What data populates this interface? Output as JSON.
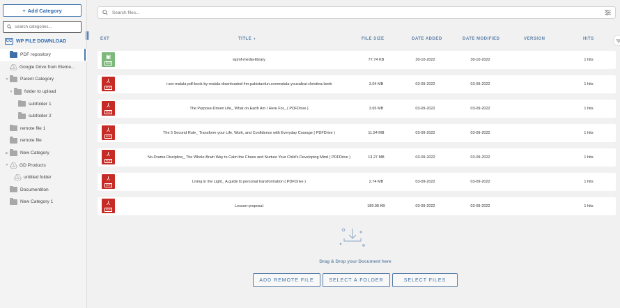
{
  "sidebar": {
    "add_category": "Add Category",
    "search_placeholder": "Search categories...",
    "brand": "WP FILE DOWNLOAD",
    "brand_logo": "CC",
    "items": [
      {
        "label": "PDF repository",
        "level": 0,
        "icon": "folder",
        "active": true,
        "arrow": ""
      },
      {
        "label": "Google Drive from Eleme...",
        "level": 0,
        "icon": "google-drive",
        "arrow": ""
      },
      {
        "label": "Parent Category",
        "level": 0,
        "icon": "folder",
        "arrow": "▼"
      },
      {
        "label": "folder to upload",
        "level": 1,
        "icon": "folder",
        "arrow": "▼"
      },
      {
        "label": "subfolder 1",
        "level": 2,
        "icon": "folder",
        "arrow": ""
      },
      {
        "label": "subfolder 2",
        "level": 2,
        "icon": "folder",
        "arrow": ""
      },
      {
        "label": "remote file 1",
        "level": 0,
        "icon": "folder",
        "arrow": ""
      },
      {
        "label": "remote file",
        "level": 0,
        "icon": "folder",
        "arrow": ""
      },
      {
        "label": "New Category",
        "level": 0,
        "icon": "folder",
        "arrow": "▶"
      },
      {
        "label": "GD Products",
        "level": 0,
        "icon": "google-drive",
        "arrow": "▼"
      },
      {
        "label": "untitled folder",
        "level": 1,
        "icon": "google-drive",
        "arrow": ""
      },
      {
        "label": "Documentiton",
        "level": 0,
        "icon": "folder",
        "arrow": ""
      },
      {
        "label": "New Category 1",
        "level": 0,
        "icon": "folder",
        "arrow": ""
      }
    ]
  },
  "search": {
    "placeholder": "Search files..."
  },
  "table": {
    "headers": {
      "ext": "EXT",
      "title": "TITLE",
      "sort_icon": "▼",
      "size": "FILE SIZE",
      "added": "DATE ADDED",
      "modified": "DATE MODIFIED",
      "version": "VERSION",
      "hits": "HITS"
    },
    "rows": [
      {
        "ext": "PNG",
        "ext_color": "#7cb87a",
        "title": "wpmf-media-library",
        "size": "77.74 KB",
        "added": "30-10-2022",
        "modified": "30-10-2022",
        "version": "",
        "hits": "1 hits"
      },
      {
        "ext": "PDF",
        "ext_color": "#c62b25",
        "title": "i-am-malala-pdf-book-by-malala-downloaded-4m-pakistanfun.commalala-yousafzai-christina-lamb",
        "size": "3.04 MB",
        "added": "03-09-2022",
        "modified": "03-09-2022",
        "version": "",
        "hits": "1 hits"
      },
      {
        "ext": "PDF",
        "ext_color": "#c62b25",
        "title": "The Purpose-Driven Life_ What on Earth Am I Here For_ ( PDFDrive )",
        "size": "3.65 MB",
        "added": "03-09-2022",
        "modified": "03-09-2022",
        "version": "",
        "hits": "1 hits"
      },
      {
        "ext": "PDF",
        "ext_color": "#c62b25",
        "title": "The 5 Second Rule_ Transform your Life, Work, and Confidence with Everyday Courage ( PDFDrive )",
        "size": "11.94 MB",
        "added": "03-09-2022",
        "modified": "03-09-2022",
        "version": "",
        "hits": "1 hits"
      },
      {
        "ext": "PDF",
        "ext_color": "#c62b25",
        "title": "No-Drama Discipline_ The Whole-Brain Way to Calm the Chaos and Nurture Your Child's Developing Mind ( PDFDrive )",
        "size": "13.27 MB",
        "added": "03-09-2022",
        "modified": "03-09-2022",
        "version": "",
        "hits": "1 hits"
      },
      {
        "ext": "PDF",
        "ext_color": "#c62b25",
        "title": "Living in the Light_ A guide to personal transformation ( PDFDrive )",
        "size": "2.74 MB",
        "added": "03-09-2022",
        "modified": "03-09-2022",
        "version": "",
        "hits": "1 hits"
      },
      {
        "ext": "PDF",
        "ext_color": "#c62b25",
        "title": "Lesson-proposal",
        "size": "189.98 KB",
        "added": "03-09-2022",
        "modified": "03-09-2022",
        "version": "",
        "hits": "1 hits"
      }
    ]
  },
  "dropzone": {
    "text": "Drag & Drop your Document here"
  },
  "buttons": {
    "remote": "ADD REMOTE FILE",
    "folder": "SELECT A FOLDER",
    "files": "SELECT FILES"
  }
}
